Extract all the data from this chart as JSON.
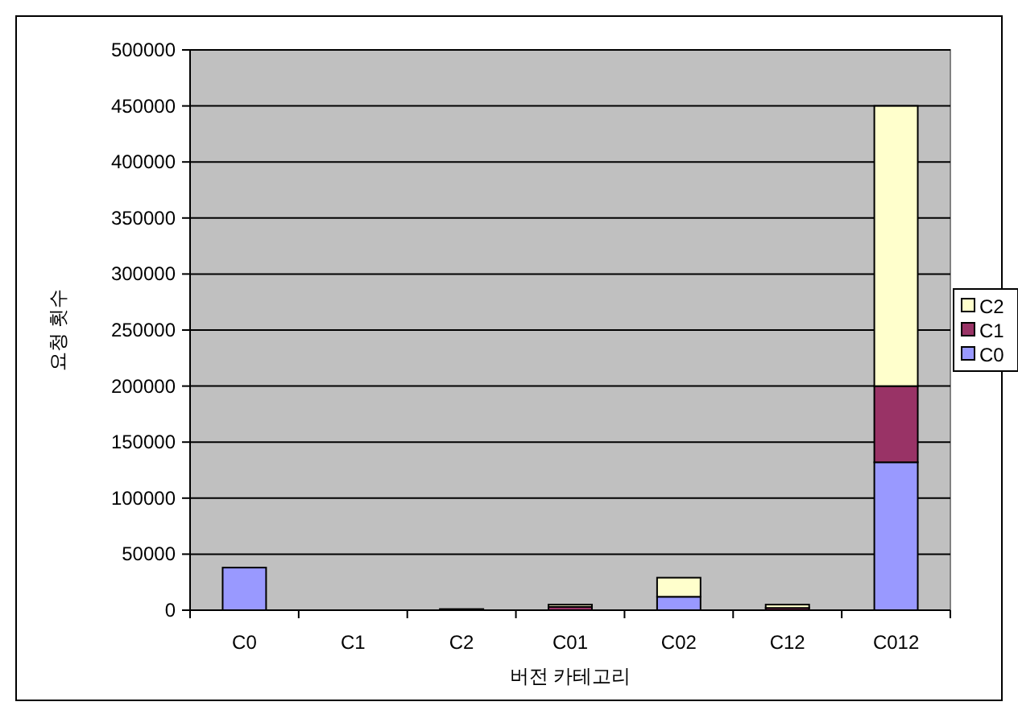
{
  "chart_data": {
    "type": "bar",
    "stacked": true,
    "xlabel": "버전 카테고리",
    "ylabel": "요청 횟수",
    "categories": [
      "C0",
      "C1",
      "C2",
      "C01",
      "C02",
      "C12",
      "C012"
    ],
    "series": [
      {
        "name": "C0",
        "color": "#9999ff",
        "values": [
          38000,
          null,
          null,
          null,
          12000,
          null,
          132000
        ]
      },
      {
        "name": "C1",
        "color": "#993366",
        "values": [
          null,
          null,
          1000,
          3000,
          null,
          2000,
          68000
        ]
      },
      {
        "name": "C2",
        "color": "#ffffcc",
        "values": [
          null,
          null,
          null,
          2000,
          17000,
          3000,
          250000
        ]
      }
    ],
    "ylim": [
      0,
      500000
    ],
    "yticks": [
      0,
      50000,
      100000,
      150000,
      200000,
      250000,
      300000,
      350000,
      400000,
      450000,
      500000
    ],
    "grid": "y",
    "legend": "right"
  }
}
